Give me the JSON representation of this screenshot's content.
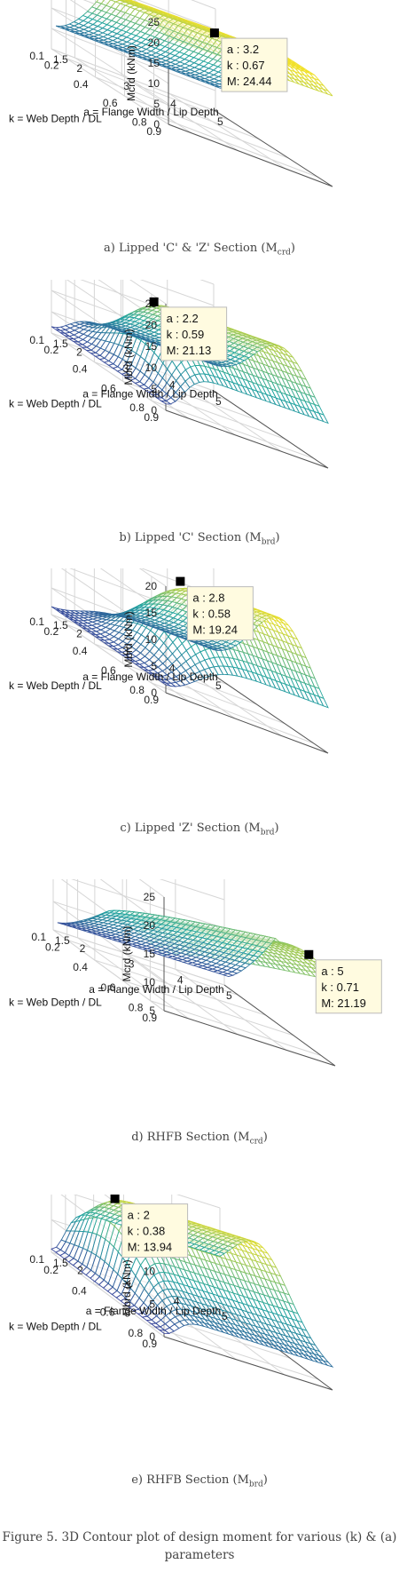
{
  "chart_data": [
    {
      "type": "surface",
      "caption": "a) Lipped 'C' & 'Z' Section (M",
      "caption_sub": "crd",
      "zlabel": "Mcrd (kNm)",
      "xlabel": "a = Flange Width / Lip Depth",
      "ylabel": "k = Web Depth / DL",
      "zticks": [
        0,
        5,
        10,
        15,
        20,
        25
      ],
      "zlim": [
        0,
        25
      ],
      "xticks": [
        1.5,
        2,
        3,
        4,
        5
      ],
      "xlim": [
        1.5,
        5
      ],
      "yticks": [
        0.9,
        0.8,
        0.6,
        0.4,
        0.2,
        0.1
      ],
      "ylim": [
        0.1,
        0.9
      ],
      "peak": {
        "a": 3.2,
        "k": 0.67,
        "M": 24.44
      },
      "tip": {
        "a": "a : 3.2",
        "k": "k : 0.67",
        "m": "M: 24.44"
      },
      "low_k_value": 20.0,
      "edge_value": 6.0,
      "high_k_value": 19.5
    },
    {
      "type": "surface",
      "caption": "b) Lipped 'C' Section (M",
      "caption_sub": "brd",
      "zlabel": "Mbrd (kNm)",
      "xlabel": "a = Flange Width / Lip Depth",
      "ylabel": "k = Web Depth / DL",
      "zticks": [
        0,
        5,
        10,
        15,
        20,
        25
      ],
      "zlim": [
        0,
        25
      ],
      "xticks": [
        1.5,
        2,
        3,
        4,
        5
      ],
      "xlim": [
        1.5,
        5
      ],
      "yticks": [
        0.9,
        0.8,
        0.6,
        0.4,
        0.2,
        0.1
      ],
      "ylim": [
        0.1,
        0.9
      ],
      "peak": {
        "a": 2.2,
        "k": 0.59,
        "M": 21.13
      },
      "tip": {
        "a": "a : 2.2",
        "k": "k : 0.59",
        "m": "M: 21.13"
      },
      "low_k_value": 1.5,
      "edge_value": 5.0,
      "high_k_value": 1.5
    },
    {
      "type": "surface",
      "caption": "c) Lipped 'Z' Section (M",
      "caption_sub": "brd",
      "zlabel": "Mbrd (kNm)",
      "xlabel": "a = Flange Width / Lip Depth",
      "ylabel": "k = Web Depth / DL",
      "zticks": [
        0,
        5,
        10,
        15,
        20
      ],
      "zlim": [
        0,
        20
      ],
      "xticks": [
        1.5,
        2,
        3,
        4,
        5
      ],
      "xlim": [
        1.5,
        5
      ],
      "yticks": [
        0.9,
        0.8,
        0.6,
        0.4,
        0.2,
        0.1
      ],
      "ylim": [
        0.1,
        0.9
      ],
      "peak": {
        "a": 2.8,
        "k": 0.58,
        "M": 19.24
      },
      "tip": {
        "a": "a : 2.8",
        "k": "k : 0.58",
        "m": "M: 19.24"
      },
      "low_k_value": 1.5,
      "edge_value": 3.5,
      "high_k_value": 1.5
    },
    {
      "type": "surface",
      "caption": "d) RHFB Section (M",
      "caption_sub": "crd",
      "zlabel": "Mcrd (kNm)",
      "xlabel": "a = Flange Width / Lip Depth",
      "ylabel": "k = Web Depth / DL",
      "zticks": [
        5,
        10,
        15,
        20,
        25
      ],
      "zlim": [
        5,
        25
      ],
      "xticks": [
        1.5,
        2,
        3,
        4,
        5
      ],
      "xlim": [
        1.5,
        5
      ],
      "yticks": [
        0.9,
        0.8,
        0.6,
        0.4,
        0.2,
        0.1
      ],
      "ylim": [
        0.1,
        0.9
      ],
      "peak": {
        "a": 5,
        "k": 0.71,
        "M": 21.19
      },
      "tip": {
        "a": "a : 5",
        "k": "k : 0.71",
        "m": "M: 21.19"
      },
      "low_k_value": 15.5,
      "edge_value": 6.5,
      "high_k_value": 15.0
    },
    {
      "type": "surface",
      "caption": "e) RHFB Section (M",
      "caption_sub": "brd",
      "zlabel": "Mbrd (kNm)",
      "xlabel": "a = Flange Width / Lip Depth",
      "ylabel": "k = Web Depth / DL",
      "zticks": [
        0,
        5,
        10,
        15
      ],
      "zlim": [
        0,
        15
      ],
      "xticks": [
        1.5,
        2,
        3,
        4,
        5
      ],
      "xlim": [
        1.5,
        5
      ],
      "yticks": [
        0.9,
        0.8,
        0.6,
        0.4,
        0.2,
        0.1
      ],
      "ylim": [
        0.1,
        0.9
      ],
      "peak": {
        "a": 2,
        "k": 0.38,
        "M": 13.94
      },
      "tip": {
        "a": "a : 2",
        "k": "k : 0.38",
        "m": "M: 13.94"
      },
      "low_k_value": 0.5,
      "edge_value": 3.0,
      "high_k_value": 0.5
    }
  ],
  "figure_caption": "Figure 5. 3D Contour plot of design moment for various (k) & (a) parameters",
  "colors": {
    "low": "#3b3c9a",
    "mid": "#21a5a0",
    "high": "#fbe424",
    "grid": "#d6d6d6",
    "marker": "#000000",
    "tooltip_bg": "#fffbe0",
    "tooltip_border": "#bbbbbb"
  }
}
